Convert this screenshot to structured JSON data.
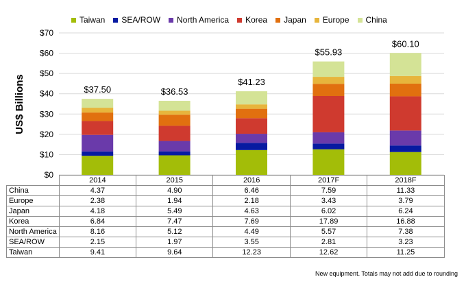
{
  "chart_data": {
    "type": "stacked-bar",
    "ylabel": "US$ Billions",
    "ylim": [
      0,
      70
    ],
    "yticks": [
      "$0",
      "$10",
      "$20",
      "$30",
      "$40",
      "$50",
      "$60",
      "$70"
    ],
    "categories": [
      "2014",
      "2015",
      "2016",
      "2017F",
      "2018F"
    ],
    "totals": [
      "$37.50",
      "$36.53",
      "$41.23",
      "$55.93",
      "$60.10"
    ],
    "series": [
      {
        "name": "Taiwan",
        "color": "#a3bd08",
        "values": [
          9.41,
          9.64,
          12.23,
          12.62,
          11.25
        ]
      },
      {
        "name": "SEA/ROW",
        "color": "#071aa1",
        "values": [
          2.15,
          1.97,
          3.55,
          2.81,
          3.23
        ]
      },
      {
        "name": "North America",
        "color": "#6a3aaa",
        "values": [
          8.16,
          5.12,
          4.49,
          5.57,
          7.38
        ]
      },
      {
        "name": "Korea",
        "color": "#cf3a2f",
        "values": [
          6.84,
          7.47,
          7.69,
          17.89,
          16.88
        ]
      },
      {
        "name": "Japan",
        "color": "#e1700f",
        "values": [
          4.18,
          5.49,
          4.63,
          6.02,
          6.24
        ]
      },
      {
        "name": "Europe",
        "color": "#e7b53c",
        "values": [
          2.38,
          1.94,
          2.18,
          3.43,
          3.79
        ]
      },
      {
        "name": "China",
        "color": "#d4e396",
        "values": [
          4.37,
          4.9,
          6.46,
          7.59,
          11.33
        ]
      }
    ],
    "table": {
      "rows": [
        {
          "label": "China",
          "cells": [
            "4.37",
            "4.90",
            "6.46",
            "7.59",
            "11.33"
          ]
        },
        {
          "label": "Europe",
          "cells": [
            "2.38",
            "1.94",
            "2.18",
            "3.43",
            "3.79"
          ]
        },
        {
          "label": "Japan",
          "cells": [
            "4.18",
            "5.49",
            "4.63",
            "6.02",
            "6.24"
          ]
        },
        {
          "label": "Korea",
          "cells": [
            "6.84",
            "7.47",
            "7.69",
            "17.89",
            "16.88"
          ]
        },
        {
          "label": "North America",
          "cells": [
            "8.16",
            "5.12",
            "4.49",
            "5.57",
            "7.38"
          ]
        },
        {
          "label": "SEA/ROW",
          "cells": [
            "2.15",
            "1.97",
            "3.55",
            "2.81",
            "3.23"
          ]
        },
        {
          "label": "Taiwan",
          "cells": [
            "9.41",
            "9.64",
            "12.23",
            "12.62",
            "11.25"
          ]
        }
      ]
    },
    "footnote": "New equipment. Totals may not add due to rounding"
  }
}
